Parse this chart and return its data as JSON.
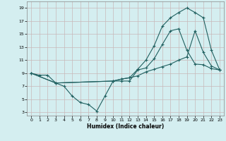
{
  "xlabel": "Humidex (Indice chaleur)",
  "xlim": [
    -0.5,
    23.5
  ],
  "ylim": [
    2.5,
    20
  ],
  "xticks": [
    0,
    1,
    2,
    3,
    4,
    5,
    6,
    7,
    8,
    9,
    10,
    11,
    12,
    13,
    14,
    15,
    16,
    17,
    18,
    19,
    20,
    21,
    22,
    23
  ],
  "yticks": [
    3,
    5,
    7,
    9,
    11,
    13,
    15,
    17,
    19
  ],
  "bg_color": "#d4eef0",
  "grid_color": "#c8b8b8",
  "line_color": "#206060",
  "line1_x": [
    0,
    1,
    2,
    3,
    4,
    5,
    6,
    7,
    8,
    9,
    10,
    11,
    12,
    13,
    14,
    15,
    16,
    17,
    18,
    19,
    20,
    21,
    22,
    23
  ],
  "line1_y": [
    9,
    8.7,
    8.7,
    7.5,
    7.0,
    5.5,
    4.5,
    4.2,
    3.2,
    5.5,
    7.8,
    7.8,
    7.8,
    9.5,
    9.8,
    11.2,
    13.4,
    15.5,
    15.8,
    12.5,
    10.4,
    10.3,
    9.7,
    9.5
  ],
  "line2_x": [
    0,
    3,
    10,
    11,
    12,
    13,
    14,
    15,
    16,
    17,
    18,
    19,
    20,
    21,
    22,
    23
  ],
  "line2_y": [
    9,
    7.5,
    7.8,
    8.1,
    8.3,
    9.6,
    11.0,
    13.2,
    16.2,
    17.5,
    18.3,
    19.0,
    18.3,
    17.5,
    12.5,
    9.5
  ],
  "line3_x": [
    0,
    3,
    10,
    11,
    12,
    13,
    14,
    15,
    16,
    17,
    18,
    19,
    20,
    21,
    22,
    23
  ],
  "line3_y": [
    9,
    7.5,
    7.8,
    8.1,
    8.3,
    8.6,
    9.2,
    9.6,
    10.0,
    10.4,
    11.0,
    11.5,
    15.5,
    12.2,
    10.1,
    9.5
  ]
}
